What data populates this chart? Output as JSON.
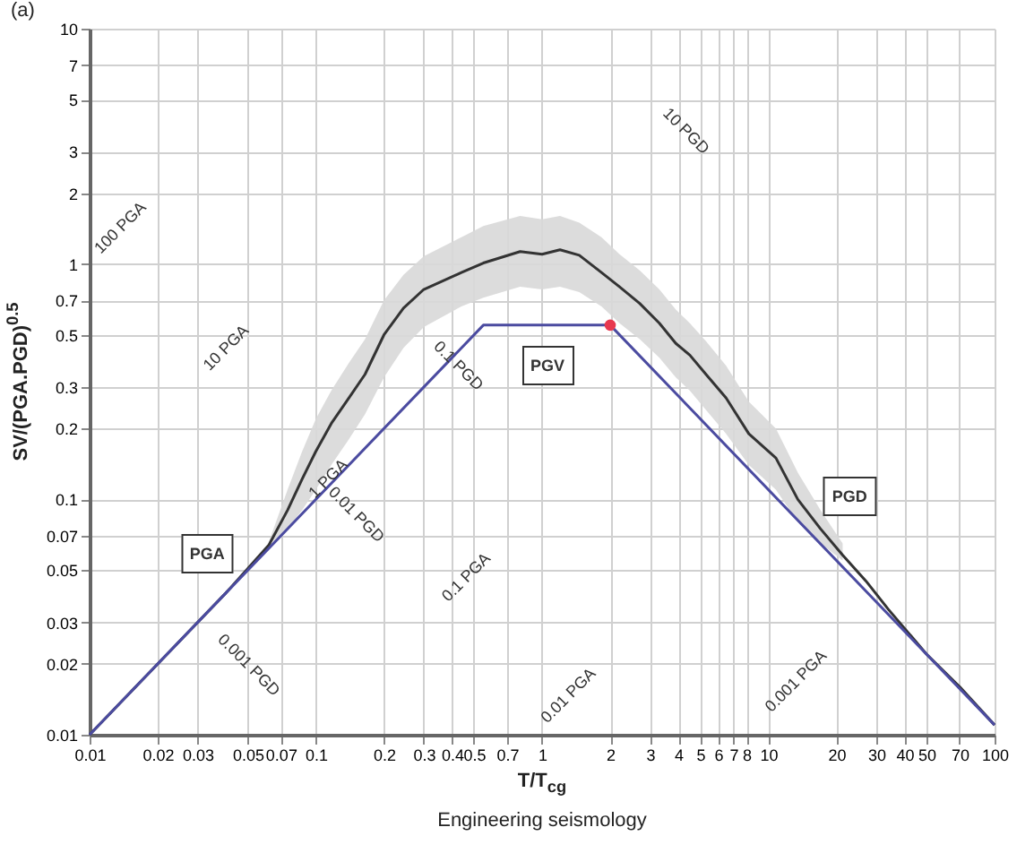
{
  "chart_data": {
    "type": "line",
    "title": "(a)",
    "xlabel": "T/T$_{cg}$",
    "ylabel": "SV/(PGA.PGD)$^{0.5}$",
    "log": "xy",
    "grid": true,
    "xlim": [
      0.01,
      100
    ],
    "xticks": [
      0.01,
      0.02,
      0.03,
      0.05,
      0.07,
      0.1,
      0.2,
      0.3,
      0.4,
      0.5,
      0.7,
      1,
      2,
      3,
      4,
      5,
      6,
      7,
      8,
      10,
      20,
      30,
      40,
      50,
      70,
      100
    ],
    "ylim": [
      0.01,
      10
    ],
    "yticks": [
      0.01,
      0.02,
      0.03,
      0.05,
      0.07,
      0.1,
      0.2,
      0.3,
      0.5,
      0.7,
      1,
      2,
      3,
      5,
      7,
      10
    ],
    "series": [
      {
        "color": "#333333",
        "x": [
          0.01,
          0.02,
          0.04,
          0.062,
          0.075,
          0.087,
          0.1,
          0.117,
          0.14,
          0.165,
          0.2,
          0.244,
          0.3,
          0.44,
          0.55,
          0.8,
          1.0,
          1.2,
          1.46,
          1.83,
          2.2,
          2.7,
          3.3,
          3.9,
          4.5,
          5.3,
          6.5,
          8.2,
          10.8,
          13.5,
          17,
          21.3,
          27,
          34,
          50,
          70,
          100
        ],
        "values": [
          0.01,
          0.02,
          0.04,
          0.064,
          0.09,
          0.122,
          0.16,
          0.21,
          0.27,
          0.34,
          0.5,
          0.65,
          0.78,
          0.92,
          1.01,
          1.13,
          1.1,
          1.15,
          1.09,
          0.92,
          0.8,
          0.68,
          0.56,
          0.46,
          0.41,
          0.34,
          0.27,
          0.19,
          0.15,
          0.1,
          0.075,
          0.058,
          0.045,
          0.034,
          0.022,
          0.016,
          0.011
        ],
        "lower": [
          null,
          null,
          null,
          0.064,
          0.075,
          0.09,
          0.11,
          0.14,
          0.18,
          0.23,
          0.33,
          0.44,
          0.54,
          0.66,
          0.72,
          0.8,
          0.78,
          0.8,
          0.76,
          0.66,
          0.56,
          0.48,
          0.4,
          0.33,
          0.29,
          0.24,
          0.19,
          0.14,
          0.11,
          0.08,
          0.065,
          0.055,
          null,
          null,
          null,
          null,
          null
        ],
        "upper": [
          null,
          null,
          null,
          0.066,
          0.11,
          0.16,
          0.22,
          0.29,
          0.38,
          0.48,
          0.7,
          0.9,
          1.08,
          1.3,
          1.45,
          1.6,
          1.55,
          1.6,
          1.5,
          1.3,
          1.1,
          0.94,
          0.78,
          0.64,
          0.56,
          0.47,
          0.37,
          0.26,
          0.2,
          0.13,
          0.09,
          0.065,
          null,
          null,
          null,
          null,
          null
        ]
      },
      {
        "color": "#4b4ba0",
        "x": [
          0.01,
          0.55,
          2,
          100
        ],
        "values": [
          0.01,
          0.55,
          0.55,
          0.011
        ]
      },
      {
        "type": "scatter",
        "color": "#e8384f",
        "x": [
          2
        ],
        "values": [
          0.55
        ]
      }
    ],
    "annotations": [
      "100 PGA",
      "10 PGA",
      "0.1 PGD",
      "1 PGA",
      "0.01 PGD",
      "0.001 PGD",
      "0.1 PGA",
      "0.01 PGA",
      "0.001 PGA",
      "10 PGD",
      "PGA",
      "PGV",
      "PGD",
      "Engineering seismology"
    ]
  }
}
